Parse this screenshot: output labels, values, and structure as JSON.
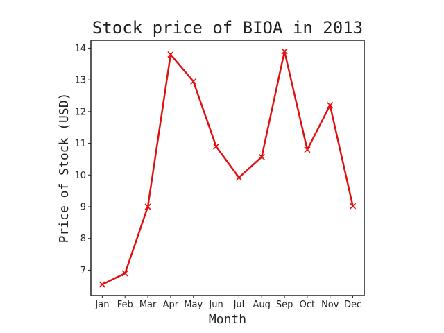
{
  "chart_data": {
    "type": "line",
    "title": "Stock price of BIOA in 2013",
    "xlabel": "Month",
    "ylabel": "Price of Stock (USD)",
    "categories": [
      "Jan",
      "Feb",
      "Mar",
      "Apr",
      "May",
      "Jun",
      "Jul",
      "Aug",
      "Sep",
      "Oct",
      "Nov",
      "Dec"
    ],
    "series": [
      {
        "values": [
          6.55,
          6.9,
          9.0,
          13.8,
          12.95,
          10.9,
          9.92,
          10.57,
          13.9,
          10.8,
          12.2,
          9.02
        ],
        "color": "#e01010",
        "marker": "x"
      }
    ],
    "ylim": [
      6.2,
      14.25
    ],
    "yticks": [
      7,
      8,
      9,
      10,
      11,
      12,
      13,
      14
    ],
    "grid": false,
    "legend": "none"
  }
}
